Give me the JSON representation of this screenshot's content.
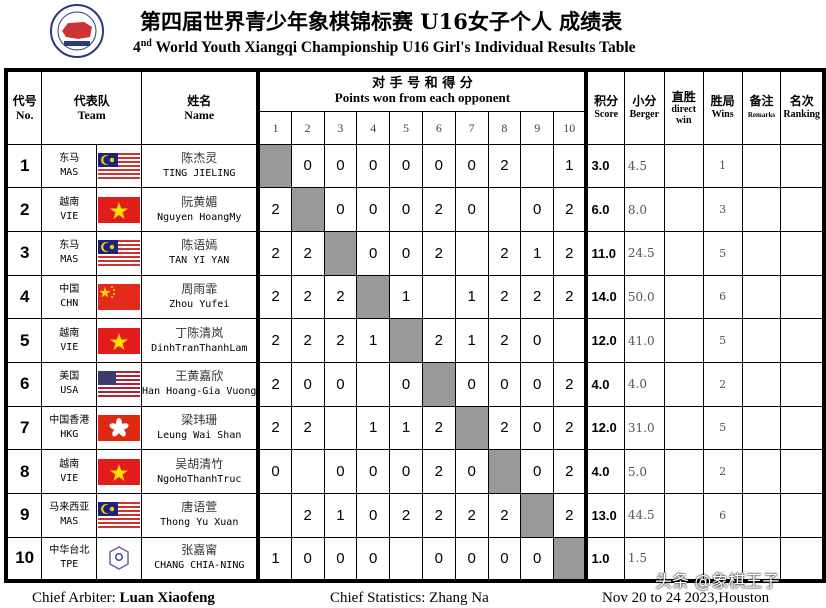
{
  "header": {
    "title_cn": "第四届世界青少年象棋锦标赛 U16女子个人 成绩表",
    "title_en_ordinal": "4",
    "title_en_sup": "nd",
    "title_en": " World Youth Xiangqi Championship U16 Girl's Individual Results Table",
    "logo": "world-youth-xiangqi-championship-logo"
  },
  "columns": {
    "no_cn": "代号",
    "no_en": "No.",
    "team_cn": "代表队",
    "team_en": "Team",
    "name_cn": "姓名",
    "name_en": "Name",
    "points_cn": "对 手 号 和 得 分",
    "points_en": "Points won from each opponent",
    "opponents": [
      "1",
      "2",
      "3",
      "4",
      "5",
      "6",
      "7",
      "8",
      "9",
      "10"
    ],
    "score_cn": "积分",
    "score_en": "Score",
    "berger_cn": "小分",
    "berger_en": "Berger",
    "direct_cn": "直胜",
    "direct_en": "direct win",
    "wins_cn": "胜局",
    "wins_en": "Wins",
    "remarks_cn": "备注",
    "remarks_en": "Remarks",
    "ranking_cn": "名次",
    "ranking_en": "Ranking"
  },
  "rows": [
    {
      "no": "1",
      "team_cn": "东马",
      "team_en": "MAS",
      "flag": "malaysia",
      "name_cn": "陈杰灵",
      "name_en": "TING JIELING",
      "points": [
        "",
        "0",
        "0",
        "0",
        "0",
        "0",
        "0",
        "2",
        "",
        "1"
      ],
      "score": "3.0",
      "berger": "4.5",
      "direct": "",
      "wins": "1",
      "remarks": "",
      "ranking": ""
    },
    {
      "no": "2",
      "team_cn": "越南",
      "team_en": "VIE",
      "flag": "vietnam",
      "name_cn": "阮黄媚",
      "name_en": "Nguyen HoangMy",
      "points": [
        "2",
        "",
        "0",
        "0",
        "0",
        "2",
        "0",
        "",
        "0",
        "2"
      ],
      "score": "6.0",
      "berger": "8.0",
      "direct": "",
      "wins": "3",
      "remarks": "",
      "ranking": ""
    },
    {
      "no": "3",
      "team_cn": "东马",
      "team_en": "MAS",
      "flag": "malaysia",
      "name_cn": "陈语嫣",
      "name_en": "TAN YI YAN",
      "points": [
        "2",
        "2",
        "",
        "0",
        "0",
        "2",
        "",
        "2",
        "1",
        "2"
      ],
      "score": "11.0",
      "berger": "24.5",
      "direct": "",
      "wins": "5",
      "remarks": "",
      "ranking": ""
    },
    {
      "no": "4",
      "team_cn": "中国",
      "team_en": "CHN",
      "flag": "china",
      "name_cn": "周雨霏",
      "name_en": "Zhou Yufei",
      "points": [
        "2",
        "2",
        "2",
        "",
        "1",
        "",
        "1",
        "2",
        "2",
        "2"
      ],
      "score": "14.0",
      "berger": "50.0",
      "direct": "",
      "wins": "6",
      "remarks": "",
      "ranking": ""
    },
    {
      "no": "5",
      "team_cn": "越南",
      "team_en": "VIE",
      "flag": "vietnam",
      "name_cn": "丁陈清岚",
      "name_en": "DinhTranThanhLam",
      "points": [
        "2",
        "2",
        "2",
        "1",
        "",
        "2",
        "1",
        "2",
        "0",
        ""
      ],
      "score": "12.0",
      "berger": "41.0",
      "direct": "",
      "wins": "5",
      "remarks": "",
      "ranking": ""
    },
    {
      "no": "6",
      "team_cn": "美国",
      "team_en": "USA",
      "flag": "usa",
      "name_cn": "王黄嘉欣",
      "name_en": "Han Hoang-Gia Vuong",
      "points": [
        "2",
        "0",
        "0",
        "",
        "0",
        "",
        "0",
        "0",
        "0",
        "2"
      ],
      "score": "4.0",
      "berger": "4.0",
      "direct": "",
      "wins": "2",
      "remarks": "",
      "ranking": ""
    },
    {
      "no": "7",
      "team_cn": "中国香港",
      "team_en": "HKG",
      "flag": "hongkong",
      "name_cn": "梁玮珊",
      "name_en": "Leung Wai Shan",
      "points": [
        "2",
        "2",
        "",
        "1",
        "1",
        "2",
        "",
        "2",
        "0",
        "2"
      ],
      "score": "12.0",
      "berger": "31.0",
      "direct": "",
      "wins": "5",
      "remarks": "",
      "ranking": ""
    },
    {
      "no": "8",
      "team_cn": "越南",
      "team_en": "VIE",
      "flag": "vietnam",
      "name_cn": "吴胡清竹",
      "name_en": "NgoHoThanhTruc",
      "points": [
        "0",
        "",
        "0",
        "0",
        "0",
        "2",
        "0",
        "",
        "0",
        "2"
      ],
      "score": "4.0",
      "berger": "5.0",
      "direct": "",
      "wins": "2",
      "remarks": "",
      "ranking": ""
    },
    {
      "no": "9",
      "team_cn": "马来西亚",
      "team_en": "MAS",
      "flag": "malaysia",
      "name_cn": "唐语萱",
      "name_en": "Thong Yu Xuan",
      "points": [
        "",
        "2",
        "1",
        "0",
        "2",
        "2",
        "2",
        "2",
        "",
        "2"
      ],
      "score": "13.0",
      "berger": "44.5",
      "direct": "",
      "wins": "6",
      "remarks": "",
      "ranking": ""
    },
    {
      "no": "10",
      "team_cn": "中华台北",
      "team_en": "TPE",
      "flag": "chinese-taipei",
      "name_cn": "张嘉甯",
      "name_en": "CHANG CHIA-NING",
      "points": [
        "1",
        "0",
        "0",
        "0",
        "",
        "0",
        "0",
        "0",
        "0",
        ""
      ],
      "score": "1.0",
      "berger": "1.5",
      "direct": "",
      "wins": "",
      "remarks": "",
      "ranking": ""
    }
  ],
  "footer": {
    "arbiter_label": "Chief Arbiter: ",
    "arbiter_name": "Luan Xiaofeng",
    "statistics": "Chief Statistics: Zhang Na",
    "date_place": "Nov 20 to 24 2023,Houston"
  },
  "watermark": "头条 @象棋王子",
  "colors": {
    "self_cell": "#999999"
  }
}
